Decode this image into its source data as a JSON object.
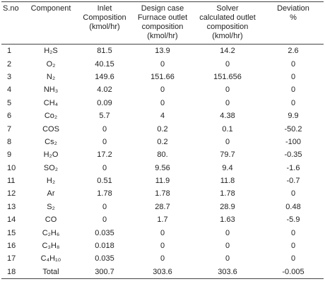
{
  "table": {
    "header": [
      [
        "S.no"
      ],
      [
        "Component"
      ],
      [
        "Inlet",
        "Composition",
        "(kmol/hr)"
      ],
      [
        "Design case",
        "Furnace outlet",
        "composition",
        "(kmol/hr)"
      ],
      [
        "Solver",
        "calculated outlet",
        "composition",
        "(kmol/hr)"
      ],
      [
        "Deviation",
        "%"
      ]
    ],
    "rows": [
      [
        "1",
        "H₂S",
        "81.5",
        "13.9",
        "14.2",
        "2.6"
      ],
      [
        "2",
        "O₂",
        "40.15",
        "0",
        "0",
        "0"
      ],
      [
        "3",
        "N₂",
        "149.6",
        "151.66",
        "151.656",
        "0"
      ],
      [
        "4",
        "NH₃",
        "4.02",
        "0",
        "0",
        "0"
      ],
      [
        "5",
        "CH₄",
        "0.09",
        "0",
        "0",
        "0"
      ],
      [
        "6",
        "Co₂",
        "5.7",
        "4",
        "4.38",
        "9.9"
      ],
      [
        "7",
        "COS",
        "0",
        "0.2",
        "0.1",
        "-50.2"
      ],
      [
        "8",
        "Cs₂",
        "0",
        "0.2",
        "0",
        "-100"
      ],
      [
        "9",
        "H₂O",
        "17.2",
        "80.",
        "79.7",
        "-0.35"
      ],
      [
        "10",
        "SO₂",
        "0",
        "9.56",
        "9.4",
        "-1.6"
      ],
      [
        "11",
        "H₂",
        "0.51",
        "11.9",
        "11.8",
        "-0.7"
      ],
      [
        "12",
        "Ar",
        "1.78",
        "1.78",
        "1.78",
        "0"
      ],
      [
        "13",
        "S₂",
        "0",
        "28.7",
        "28.9",
        "0.48"
      ],
      [
        "14",
        "CO",
        "0",
        "1.7",
        "1.63",
        "-5.9"
      ],
      [
        "15",
        "C₂H₆",
        "0.035",
        "0",
        "0",
        "0"
      ],
      [
        "16",
        "C₃H₈",
        "0.018",
        "0",
        "0",
        "0"
      ],
      [
        "17",
        "C₄H₁₀",
        "0.035",
        "0",
        "0",
        "0"
      ],
      [
        "18",
        "Total",
        "300.7",
        "303.6",
        "303.6",
        "-0.005"
      ]
    ]
  }
}
